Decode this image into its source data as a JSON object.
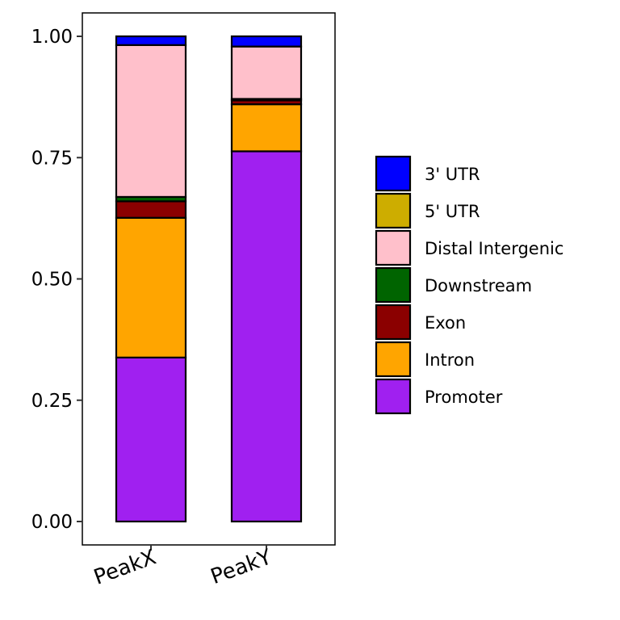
{
  "chart_data": {
    "type": "bar",
    "stacked": true,
    "categories": [
      "PeakX",
      "PeakY"
    ],
    "ylim": [
      0,
      1
    ],
    "yticks": [
      "0.00",
      "0.25",
      "0.50",
      "0.75",
      "1.00"
    ],
    "ytick_values": [
      0,
      0.25,
      0.5,
      0.75,
      1.0
    ],
    "grid": false,
    "legend_position": "right",
    "series": [
      {
        "name": "Promoter",
        "color": "#A020F0",
        "values": [
          0.338,
          0.763
        ]
      },
      {
        "name": "Intron",
        "color": "#FFA500",
        "values": [
          0.288,
          0.097
        ]
      },
      {
        "name": "Exon",
        "color": "#8B0000",
        "values": [
          0.034,
          0.008
        ]
      },
      {
        "name": "Downstream",
        "color": "#006400",
        "values": [
          0.009,
          0.003
        ]
      },
      {
        "name": "Distal Intergenic",
        "color": "#FFC0CB",
        "values": [
          0.313,
          0.108
        ]
      },
      {
        "name": "5' UTR",
        "color": "#CDAD00",
        "values": [
          0.0,
          0.0
        ]
      },
      {
        "name": "3' UTR",
        "color": "#0000FF",
        "values": [
          0.018,
          0.021
        ]
      }
    ],
    "legend_order": [
      "3' UTR",
      "5' UTR",
      "Distal Intergenic",
      "Downstream",
      "Exon",
      "Intron",
      "Promoter"
    ]
  }
}
